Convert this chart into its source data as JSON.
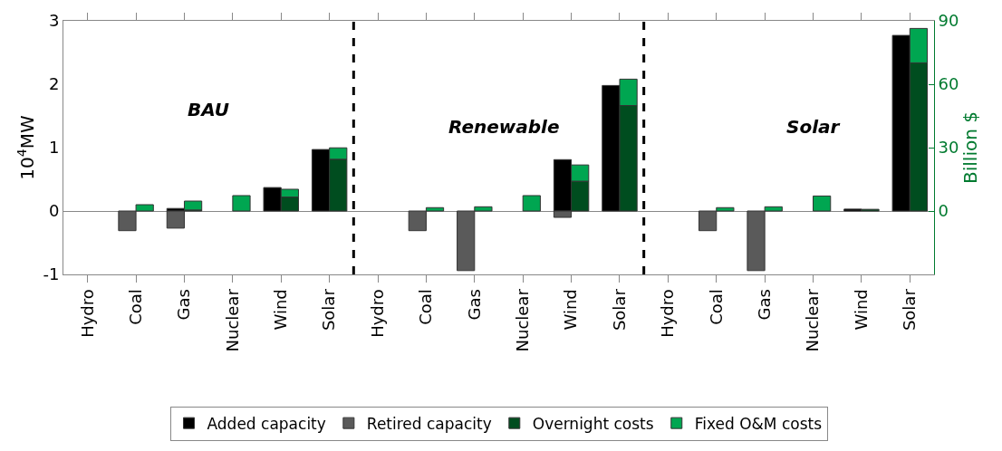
{
  "chart_data": {
    "type": "bar",
    "stacked": true,
    "categories": [
      "Hydro",
      "Coal",
      "Gas",
      "Nuclear",
      "Wind",
      "Solar",
      "Hydro",
      "Coal",
      "Gas",
      "Nuclear",
      "Wind",
      "Solar",
      "Hydro",
      "Coal",
      "Gas",
      "Nuclear",
      "Wind",
      "Solar"
    ],
    "series": [
      {
        "name": "Added capacity",
        "color": "#000000",
        "values": [
          null,
          null,
          0.04,
          null,
          0.37,
          0.97,
          null,
          null,
          null,
          null,
          0.81,
          1.98,
          null,
          null,
          null,
          null,
          0.03,
          2.77
        ]
      },
      {
        "name": "Retired capacity",
        "color": "#5a5a5a",
        "values": [
          null,
          -0.31,
          -0.27,
          null,
          null,
          null,
          null,
          -0.31,
          -0.94,
          null,
          -0.1,
          null,
          null,
          -0.31,
          -0.94,
          null,
          null,
          null
        ]
      },
      {
        "name": "Overnight costs",
        "color": "#004d1f",
        "axis": "y2",
        "values": [
          null,
          null,
          0.5,
          null,
          6.6,
          24.5,
          null,
          null,
          null,
          null,
          14.1,
          49.9,
          null,
          null,
          null,
          null,
          0.8,
          70.1
        ]
      },
      {
        "name": "Fixed O&M costs",
        "color": "#00a651",
        "axis": "y2",
        "values": [
          null,
          3,
          4.2,
          7.3,
          3.7,
          5.4,
          null,
          1.6,
          2,
          7.3,
          7.7,
          12.5,
          null,
          1.6,
          2,
          7.1,
          null,
          16.3
        ]
      }
    ],
    "ylabel": "10$^{4}$MW",
    "y2label": "Billion $",
    "ylim": [
      -1,
      3
    ],
    "yticks": [
      -1,
      0,
      1,
      2,
      3
    ],
    "y2lim": [
      -30,
      90
    ],
    "y2ticks": [
      0,
      30,
      60,
      90
    ],
    "annotations": [
      "BAU",
      "Renewable",
      "Solar"
    ],
    "legend": "bottom"
  }
}
